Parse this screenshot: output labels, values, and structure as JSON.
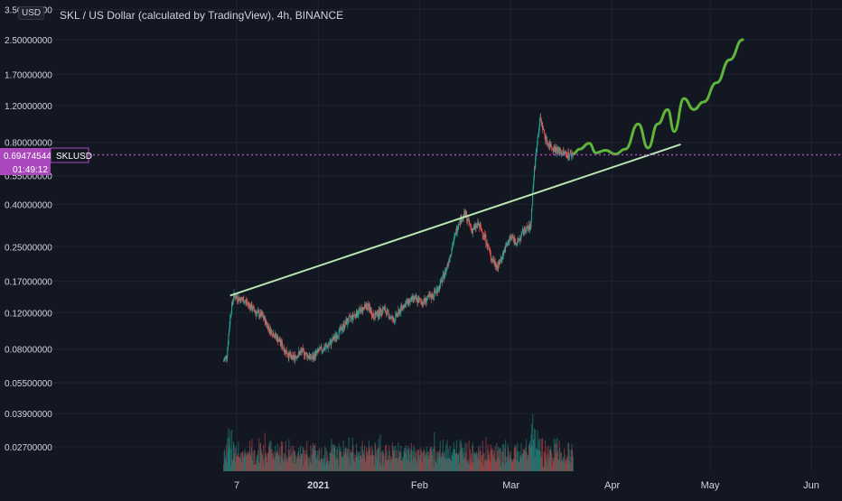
{
  "header": {
    "title": "SKL / US Dollar (calculated by TradingView), 4h, BINANCE",
    "currency": "USD"
  },
  "price_label": {
    "value": "0.69474544",
    "symbol": "SKLUSD",
    "countdown": "01:49:12"
  },
  "colors": {
    "background": "#131722",
    "candle_up": "#26a69a",
    "candle_down": "#ef5350",
    "trendline": "#b9e6b3",
    "projection": "#5fb53a",
    "price_line": "#ab47bc",
    "grid": "#1f2330",
    "axis_text": "#d1d4dc"
  },
  "chart_data": {
    "type": "candlestick",
    "scale": "log",
    "title": "SKL / US Dollar (calculated by TradingView), 4h, BINANCE",
    "y_ticks": [
      "3.50000000",
      "2.50000000",
      "1.70000000",
      "1.20000000",
      "0.80000000",
      "0.55000000",
      "0.40000000",
      "0.25000000",
      "0.17000000",
      "0.12000000",
      "0.08000000",
      "0.05500000",
      "0.03900000",
      "0.02700000"
    ],
    "y_tick_values": [
      3.5,
      2.5,
      1.7,
      1.2,
      0.8,
      0.55,
      0.4,
      0.25,
      0.17,
      0.12,
      0.08,
      0.055,
      0.039,
      0.027
    ],
    "x_ticks": [
      "7",
      "2021",
      "Feb",
      "Mar",
      "Apr",
      "May",
      "Jun"
    ],
    "x_tick_dates": [
      "2020-12-07",
      "2021-01-01",
      "2021-02-01",
      "2021-03-01",
      "2021-04-01",
      "2021-05-01",
      "2021-06-01"
    ],
    "price_path": [
      [
        "2020-12-03",
        0.07
      ],
      [
        "2020-12-04",
        0.075
      ],
      [
        "2020-12-05",
        0.115
      ],
      [
        "2020-12-06",
        0.145
      ],
      [
        "2020-12-08",
        0.14
      ],
      [
        "2020-12-10",
        0.135
      ],
      [
        "2020-12-13",
        0.12
      ],
      [
        "2020-12-15",
        0.115
      ],
      [
        "2020-12-17",
        0.1
      ],
      [
        "2020-12-20",
        0.088
      ],
      [
        "2020-12-22",
        0.078
      ],
      [
        "2020-12-24",
        0.072
      ],
      [
        "2020-12-27",
        0.078
      ],
      [
        "2020-12-30",
        0.072
      ],
      [
        "2021-01-01",
        0.078
      ],
      [
        "2021-01-04",
        0.083
      ],
      [
        "2021-01-07",
        0.095
      ],
      [
        "2021-01-10",
        0.11
      ],
      [
        "2021-01-13",
        0.12
      ],
      [
        "2021-01-16",
        0.13
      ],
      [
        "2021-01-18",
        0.115
      ],
      [
        "2021-01-21",
        0.125
      ],
      [
        "2021-01-24",
        0.11
      ],
      [
        "2021-01-27",
        0.13
      ],
      [
        "2021-01-30",
        0.14
      ],
      [
        "2021-02-02",
        0.135
      ],
      [
        "2021-02-05",
        0.145
      ],
      [
        "2021-02-07",
        0.16
      ],
      [
        "2021-02-09",
        0.19
      ],
      [
        "2021-02-11",
        0.25
      ],
      [
        "2021-02-13",
        0.33
      ],
      [
        "2021-02-15",
        0.36
      ],
      [
        "2021-02-17",
        0.3
      ],
      [
        "2021-02-19",
        0.32
      ],
      [
        "2021-02-21",
        0.28
      ],
      [
        "2021-02-23",
        0.22
      ],
      [
        "2021-02-25",
        0.2
      ],
      [
        "2021-02-27",
        0.24
      ],
      [
        "2021-03-01",
        0.28
      ],
      [
        "2021-03-03",
        0.26
      ],
      [
        "2021-03-05",
        0.3
      ],
      [
        "2021-03-07",
        0.31
      ],
      [
        "2021-03-08",
        0.55
      ],
      [
        "2021-03-09",
        0.8
      ],
      [
        "2021-03-10",
        1.05
      ],
      [
        "2021-03-11",
        0.9
      ],
      [
        "2021-03-12",
        0.8
      ],
      [
        "2021-03-14",
        0.75
      ],
      [
        "2021-03-16",
        0.72
      ],
      [
        "2021-03-18",
        0.7
      ],
      [
        "2021-03-20",
        0.695
      ]
    ],
    "trendline": [
      [
        "2020-12-05",
        0.145
      ],
      [
        "2021-04-22",
        0.78
      ]
    ],
    "projection": [
      [
        "2021-03-20",
        0.7
      ],
      [
        "2021-03-22",
        0.74
      ],
      [
        "2021-03-25",
        0.79
      ],
      [
        "2021-03-27",
        0.71
      ],
      [
        "2021-03-30",
        0.73
      ],
      [
        "2021-04-02",
        0.7
      ],
      [
        "2021-04-05",
        0.74
      ],
      [
        "2021-04-09",
        0.98
      ],
      [
        "2021-04-12",
        0.75
      ],
      [
        "2021-04-15",
        0.98
      ],
      [
        "2021-04-18",
        1.15
      ],
      [
        "2021-04-20",
        0.9
      ],
      [
        "2021-04-23",
        1.3
      ],
      [
        "2021-04-26",
        1.15
      ],
      [
        "2021-04-29",
        1.25
      ],
      [
        "2021-05-03",
        1.55
      ],
      [
        "2021-05-07",
        2.0
      ],
      [
        "2021-05-11",
        2.5
      ]
    ],
    "current_price": 0.69474544,
    "grid": true
  }
}
